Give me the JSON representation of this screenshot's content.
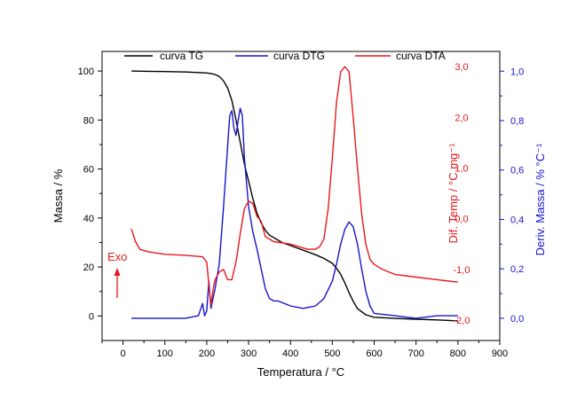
{
  "chart_data": {
    "type": "line",
    "xlabel": "Temperatura / °C",
    "xlim": [
      -50,
      900
    ],
    "xticks": [
      0,
      100,
      200,
      300,
      400,
      500,
      600,
      700,
      800,
      900
    ],
    "xtick_labels": [
      "0",
      "100",
      "200",
      "300",
      "400",
      "500",
      "600",
      "700",
      "800",
      "900"
    ],
    "axes": [
      {
        "id": "left",
        "label": "Massa / %",
        "color": "#000000",
        "ylim": [
          -10,
          108
        ],
        "ticks": [
          0,
          20,
          40,
          60,
          80,
          100
        ],
        "tick_labels": [
          "0",
          "20",
          "40",
          "60",
          "80",
          "100"
        ]
      },
      {
        "id": "right1",
        "label": "Dif. Temp / °C mg⁻¹",
        "color": "#e8171c",
        "ylim": [
          -2.4,
          3.3
        ],
        "ticks": [
          -2,
          -1,
          0,
          1,
          2,
          3
        ],
        "tick_labels": [
          "-2,0",
          "-1,0",
          "0,0",
          "1,0",
          "2,0",
          "3,0"
        ]
      },
      {
        "id": "right2",
        "label": "Deriv. Massa / % °C⁻¹",
        "color": "#1515cc",
        "ylim": [
          -0.09,
          1.08
        ],
        "ticks": [
          0,
          0.2,
          0.4,
          0.6,
          0.8,
          1.0
        ],
        "tick_labels": [
          "0,0",
          "0,2",
          "0,4",
          "0,6",
          "0,8",
          "1,0"
        ]
      }
    ],
    "legend": {
      "placement": "top"
    },
    "annotation": {
      "text": "Exo",
      "color": "#e8171c"
    },
    "series": [
      {
        "name": "curva TG",
        "axis": "left",
        "color": "#000000",
        "x": [
          20,
          60,
          100,
          150,
          180,
          200,
          210,
          220,
          230,
          240,
          250,
          260,
          270,
          280,
          290,
          300,
          310,
          320,
          330,
          340,
          350,
          380,
          420,
          460,
          480,
          500,
          510,
          520,
          530,
          540,
          550,
          560,
          580,
          600,
          650,
          700,
          750,
          800
        ],
        "y": [
          100,
          99.9,
          99.8,
          99.6,
          99.4,
          99.2,
          99,
          98.6,
          97.8,
          96,
          93,
          88,
          80,
          71,
          62,
          55,
          48,
          42,
          38,
          35,
          33,
          30,
          27.5,
          25,
          23.5,
          21.5,
          19.5,
          17,
          13.5,
          9.5,
          6,
          3,
          0.5,
          -0.5,
          -1,
          -1.3,
          -1.6,
          -2
        ]
      },
      {
        "name": "curva DTG",
        "axis": "right2",
        "color": "#1515cc",
        "x": [
          20,
          100,
          150,
          180,
          190,
          195,
          200,
          205,
          210,
          215,
          220,
          230,
          240,
          250,
          255,
          260,
          265,
          270,
          275,
          280,
          285,
          290,
          300,
          310,
          320,
          330,
          340,
          350,
          360,
          370,
          400,
          430,
          460,
          480,
          500,
          510,
          520,
          530,
          540,
          550,
          560,
          570,
          580,
          590,
          600,
          650,
          700,
          750,
          800
        ],
        "y": [
          0,
          0,
          0,
          0.01,
          0.06,
          0.01,
          0.03,
          0.15,
          0.04,
          0.08,
          0.12,
          0.22,
          0.45,
          0.7,
          0.82,
          0.84,
          0.77,
          0.74,
          0.8,
          0.85,
          0.82,
          0.65,
          0.45,
          0.35,
          0.28,
          0.2,
          0.12,
          0.08,
          0.07,
          0.07,
          0.05,
          0.04,
          0.05,
          0.08,
          0.15,
          0.22,
          0.3,
          0.36,
          0.39,
          0.37,
          0.3,
          0.2,
          0.11,
          0.05,
          0.02,
          0.01,
          0,
          0.01,
          0.01
        ]
      },
      {
        "name": "curva DTA",
        "axis": "right1",
        "color": "#e8171c",
        "x": [
          20,
          30,
          40,
          60,
          100,
          150,
          190,
          200,
          205,
          210,
          215,
          220,
          230,
          240,
          250,
          260,
          270,
          280,
          290,
          300,
          310,
          320,
          330,
          340,
          360,
          400,
          440,
          460,
          470,
          480,
          490,
          500,
          510,
          520,
          530,
          540,
          550,
          560,
          570,
          580,
          590,
          600,
          620,
          650,
          700,
          750,
          800
        ],
        "y": [
          -0.2,
          -0.45,
          -0.6,
          -0.65,
          -0.7,
          -0.72,
          -0.75,
          -0.85,
          -1.3,
          -1.7,
          -1.4,
          -1.2,
          -1.05,
          -1.0,
          -1.2,
          -1.2,
          -0.85,
          -0.3,
          0.2,
          0.35,
          0.3,
          0.05,
          -0.05,
          -0.35,
          -0.45,
          -0.5,
          -0.6,
          -0.6,
          -0.55,
          -0.4,
          0.2,
          1.2,
          2.3,
          2.9,
          3.0,
          2.9,
          2.0,
          1.0,
          0.1,
          -0.5,
          -0.8,
          -0.9,
          -1.0,
          -1.1,
          -1.15,
          -1.2,
          -1.25
        ]
      }
    ]
  }
}
